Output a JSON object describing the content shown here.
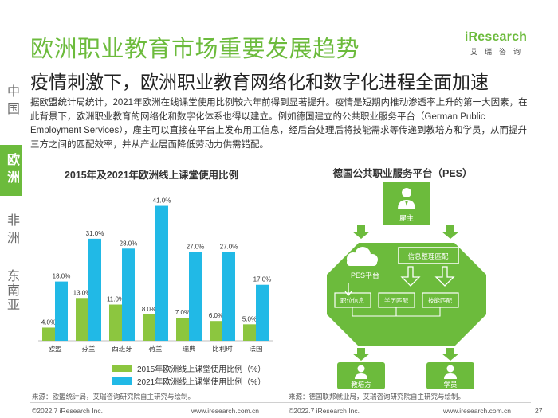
{
  "header": {
    "title": "欧洲职业教育市场重要发展趋势",
    "subtitle": "疫情刺激下，欧洲职业教育网络化和数字化进程全面加速"
  },
  "logo": {
    "main": "iResearch",
    "sub": "艾瑞咨询"
  },
  "side_nav": [
    {
      "label": "中国",
      "active": false
    },
    {
      "label": "欧洲",
      "active": true
    },
    {
      "label": "非洲",
      "active": false
    },
    {
      "label": "东南亚",
      "active": false
    }
  ],
  "paragraph": "据欧盟统计局统计，2021年欧洲在线课堂使用比例较六年前得到显著提升。疫情是短期内推动渗透率上升的第一大因素，在此背景下，欧洲职业教育的网络化和数字化体系也得以建立。例如德国建立的公共职业服务平台（German Public Employment Services），雇主可以直接在平台上发布用工信息，经后台处理后将技能需求等传递到教培方和学员，从而提升三方之间的匹配效率，并从产业层面降低劳动力供需错配。",
  "chart_data": {
    "type": "bar",
    "title": "2015年及2021年欧洲线上课堂使用比例",
    "categories": [
      "欧盟",
      "芬兰",
      "西班牙",
      "荷兰",
      "瑞典",
      "比利时",
      "法国"
    ],
    "series": [
      {
        "name": "2015年欧洲线上课堂使用比例（%）",
        "values": [
          4.0,
          13.0,
          11.0,
          8.0,
          7.0,
          6.0,
          5.0
        ],
        "labels": [
          "4.0%",
          "13.0%",
          "11.0%",
          "8.0%",
          "7.0%",
          "6.0%",
          "5.0%"
        ],
        "color": "#8cc63f"
      },
      {
        "name": "2021年欧洲线上课堂使用比例（%）",
        "values": [
          18.0,
          31.0,
          28.0,
          41.0,
          27.0,
          27.0,
          17.0
        ],
        "labels": [
          "18.0%",
          "31.0%",
          "28.0%",
          "41.0%",
          "27.0%",
          "27.0%",
          "17.0%"
        ],
        "color": "#21b9e6"
      }
    ],
    "ylim": [
      0,
      45
    ],
    "grid": false,
    "legend": "bottom"
  },
  "diagram": {
    "title": "德国公共职业服务平台（PES）",
    "employer": "雇主",
    "platform": "PES平台",
    "info_match": "信息整理匹配",
    "job_info": "职位信息",
    "school_match": "学历匹配",
    "skill_match": "技能匹配",
    "trainer": "教培方",
    "student": "学员",
    "colors": {
      "primary": "#6cbb3c",
      "white": "#ffffff"
    }
  },
  "sources": {
    "left": "来源：欧盟统计局，艾瑞咨询研究院自主研究与绘制。",
    "right": "来源：德国联邦就业局，艾瑞咨询研究院自主研究与绘制。"
  },
  "footer": {
    "left_copyright": "©2022.7 iResearch Inc.",
    "left_url": "www.iresearch.com.cn",
    "right_copyright": "©2022.7 iResearch Inc.",
    "right_url": "www.iresearch.com.cn",
    "page_number": "27"
  }
}
